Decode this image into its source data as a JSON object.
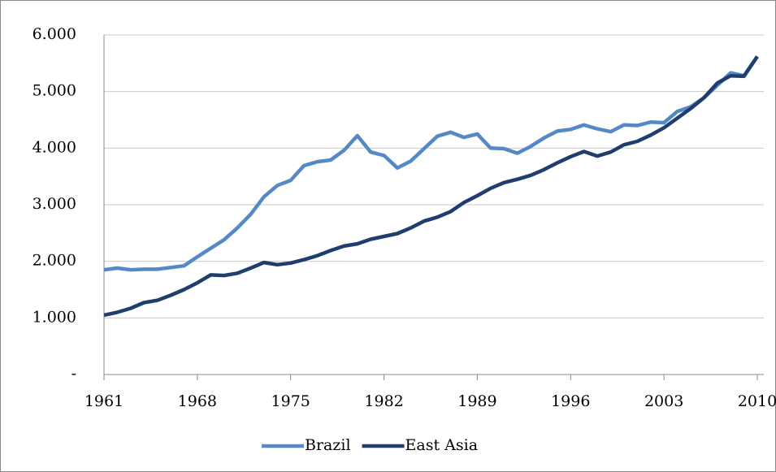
{
  "chart_data": {
    "type": "line",
    "x": [
      1961,
      1962,
      1963,
      1964,
      1965,
      1966,
      1967,
      1968,
      1969,
      1970,
      1971,
      1972,
      1973,
      1974,
      1975,
      1976,
      1977,
      1978,
      1979,
      1980,
      1981,
      1982,
      1983,
      1984,
      1985,
      1986,
      1987,
      1988,
      1989,
      1990,
      1991,
      1992,
      1993,
      1994,
      1995,
      1996,
      1997,
      1998,
      1999,
      2000,
      2001,
      2002,
      2003,
      2004,
      2005,
      2006,
      2007,
      2008,
      2009,
      2010
    ],
    "series": [
      {
        "name": "Brazil",
        "color": "#5589c6",
        "values": [
          1850,
          1880,
          1850,
          1860,
          1860,
          1890,
          1920,
          2080,
          2230,
          2380,
          2590,
          2830,
          3140,
          3340,
          3430,
          3690,
          3760,
          3790,
          3960,
          4220,
          3930,
          3870,
          3650,
          3770,
          3990,
          4210,
          4280,
          4190,
          4250,
          4000,
          3990,
          3910,
          4030,
          4180,
          4300,
          4330,
          4410,
          4340,
          4290,
          4410,
          4400,
          4460,
          4450,
          4650,
          4730,
          4890,
          5110,
          5330,
          5280,
          5620
        ]
      },
      {
        "name": "East Asia",
        "color": "#1f3e6d",
        "values": [
          1050,
          1100,
          1170,
          1270,
          1310,
          1400,
          1500,
          1620,
          1760,
          1750,
          1790,
          1880,
          1980,
          1940,
          1970,
          2030,
          2100,
          2190,
          2270,
          2310,
          2390,
          2440,
          2490,
          2590,
          2710,
          2780,
          2880,
          3040,
          3160,
          3290,
          3390,
          3450,
          3520,
          3620,
          3740,
          3850,
          3940,
          3860,
          3930,
          4060,
          4120,
          4230,
          4360,
          4530,
          4700,
          4890,
          5150,
          5280,
          5270,
          5620
        ]
      }
    ],
    "xlim": [
      1961,
      2010
    ],
    "xticks": [
      1961,
      1968,
      1975,
      1982,
      1989,
      1996,
      2003,
      2010
    ],
    "ylim": [
      0,
      6000
    ],
    "yticks": [
      {
        "value": 0,
        "label": "-"
      },
      {
        "value": 1000,
        "label": "1.000"
      },
      {
        "value": 2000,
        "label": "2.000"
      },
      {
        "value": 3000,
        "label": "3.000"
      },
      {
        "value": 4000,
        "label": "4.000"
      },
      {
        "value": 5000,
        "label": "5.000"
      },
      {
        "value": 6000,
        "label": "6.000"
      }
    ],
    "grid": true,
    "legend": "bottom"
  }
}
